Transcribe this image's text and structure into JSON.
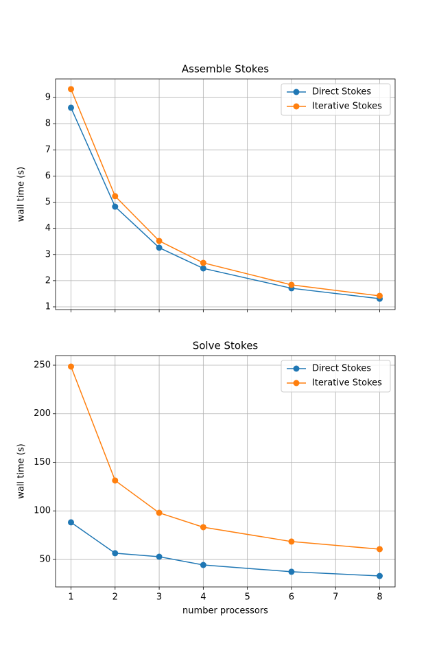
{
  "chart_data": [
    {
      "type": "line",
      "title": "Assemble Stokes",
      "y_label": "wall time (s)",
      "x": [
        1,
        2,
        3,
        4,
        6,
        8
      ],
      "series": [
        {
          "name": "Direct Stokes",
          "color": "#1f77b4",
          "values": [
            8.61,
            4.83,
            3.26,
            2.47,
            1.71,
            1.31
          ]
        },
        {
          "name": "Iterative Stokes",
          "color": "#ff7f0e",
          "values": [
            9.32,
            5.23,
            3.52,
            2.68,
            1.84,
            1.42
          ]
        }
      ],
      "xlim": [
        0.65,
        8.35
      ],
      "xticks": [
        1,
        2,
        3,
        4,
        5,
        6,
        7,
        8
      ],
      "show_xtick_labels": false,
      "ylim": [
        0.895,
        9.71
      ],
      "yticks": [
        1,
        2,
        3,
        4,
        5,
        6,
        7,
        8,
        9
      ],
      "grid": true,
      "legend": "upper-right"
    },
    {
      "type": "line",
      "title": "Solve Stokes",
      "x_label": "number processors",
      "y_label": "wall time (s)",
      "x": [
        1,
        2,
        3,
        4,
        6,
        8
      ],
      "series": [
        {
          "name": "Direct Stokes",
          "color": "#1f77b4",
          "values": [
            88.2,
            56.4,
            52.8,
            44.3,
            37.3,
            33
          ]
        },
        {
          "name": "Iterative Stokes",
          "color": "#ff7f0e",
          "values": [
            248.6,
            131.3,
            98,
            83.2,
            68.4,
            60.6
          ]
        }
      ],
      "xlim": [
        0.65,
        8.35
      ],
      "xticks": [
        1,
        2,
        3,
        4,
        5,
        6,
        7,
        8
      ],
      "show_xtick_labels": true,
      "ylim": [
        21.7,
        259.9
      ],
      "yticks": [
        50,
        100,
        150,
        200,
        250
      ],
      "grid": true,
      "legend": "upper-right"
    }
  ]
}
